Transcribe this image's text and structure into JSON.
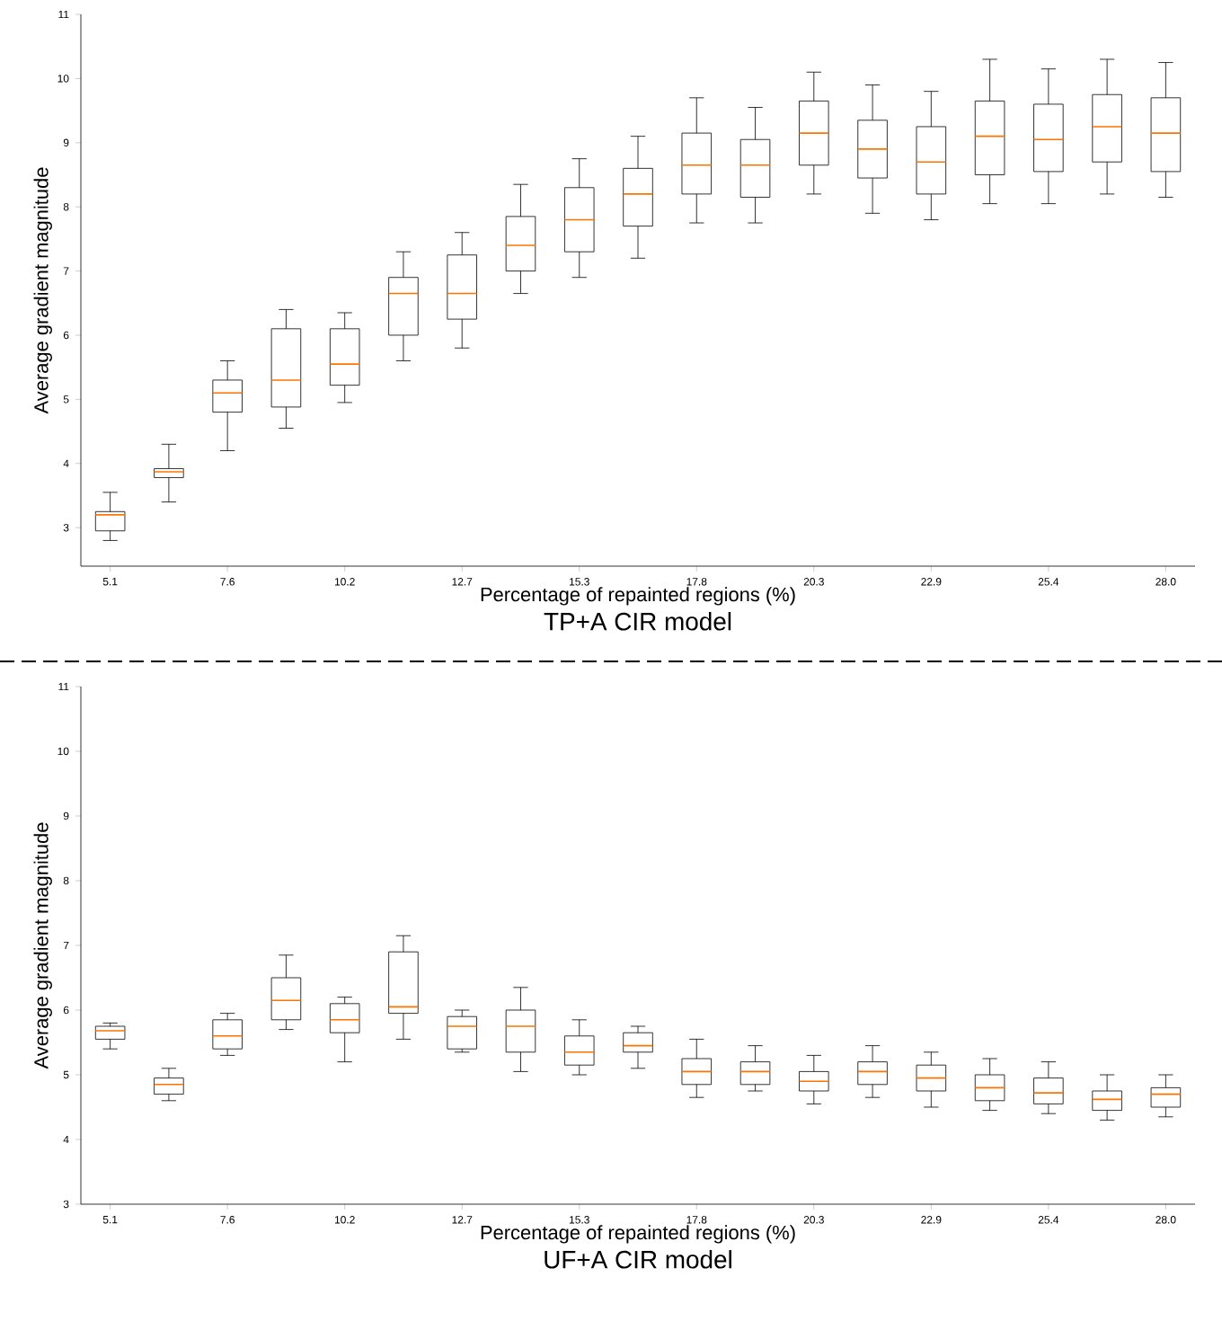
{
  "chart_data": [
    {
      "type": "box",
      "title": "TP+A CIR model",
      "xlabel": "Percentage of repainted regions (%)",
      "ylabel": "Average gradient magnitude",
      "color": "#000000",
      "categories": [
        "5.1",
        null,
        "7.6",
        null,
        "10.2",
        null,
        "12.7",
        null,
        "15.3",
        null,
        "17.8",
        null,
        "20.3",
        null,
        "22.9",
        null,
        "25.4",
        null,
        "28.0"
      ],
      "ylim": [
        2.4,
        11
      ],
      "yticks": [
        3,
        4,
        5,
        6,
        7,
        8,
        9,
        10,
        11
      ],
      "boxes": [
        {
          "low": 2.8,
          "q1": 2.95,
          "median": 3.2,
          "q3": 3.25,
          "high": 3.55
        },
        {
          "low": 3.4,
          "q1": 3.78,
          "median": 3.87,
          "q3": 3.92,
          "high": 4.3
        },
        {
          "low": 4.2,
          "q1": 4.8,
          "median": 5.1,
          "q3": 5.3,
          "high": 5.6
        },
        {
          "low": 4.55,
          "q1": 4.88,
          "median": 5.3,
          "q3": 6.1,
          "high": 6.4
        },
        {
          "low": 4.95,
          "q1": 5.22,
          "median": 5.55,
          "q3": 6.1,
          "high": 6.35
        },
        {
          "low": 5.6,
          "q1": 6.0,
          "median": 6.65,
          "q3": 6.9,
          "high": 7.3
        },
        {
          "low": 5.8,
          "q1": 6.25,
          "median": 6.65,
          "q3": 7.25,
          "high": 7.6
        },
        {
          "low": 6.65,
          "q1": 7.0,
          "median": 7.4,
          "q3": 7.85,
          "high": 8.35
        },
        {
          "low": 6.9,
          "q1": 7.3,
          "median": 7.8,
          "q3": 8.3,
          "high": 8.75
        },
        {
          "low": 7.2,
          "q1": 7.7,
          "median": 8.2,
          "q3": 8.6,
          "high": 9.1
        },
        {
          "low": 7.75,
          "q1": 8.2,
          "median": 8.65,
          "q3": 9.15,
          "high": 9.7
        },
        {
          "low": 7.75,
          "q1": 8.15,
          "median": 8.65,
          "q3": 9.05,
          "high": 9.55
        },
        {
          "low": 8.2,
          "q1": 8.65,
          "median": 9.15,
          "q3": 9.65,
          "high": 10.1
        },
        {
          "low": 7.9,
          "q1": 8.45,
          "median": 8.9,
          "q3": 9.35,
          "high": 9.9
        },
        {
          "low": 7.8,
          "q1": 8.2,
          "median": 8.7,
          "q3": 9.25,
          "high": 9.8
        },
        {
          "low": 8.05,
          "q1": 8.5,
          "median": 9.1,
          "q3": 9.65,
          "high": 10.3
        },
        {
          "low": 8.05,
          "q1": 8.55,
          "median": 9.05,
          "q3": 9.6,
          "high": 10.15
        },
        {
          "low": 8.2,
          "q1": 8.7,
          "median": 9.25,
          "q3": 9.75,
          "high": 10.3
        },
        {
          "low": 8.15,
          "q1": 8.55,
          "median": 9.15,
          "q3": 9.7,
          "high": 10.25
        }
      ]
    },
    {
      "type": "box",
      "title": "UF+A CIR model",
      "xlabel": "Percentage of repainted regions (%)",
      "ylabel": "Average gradient magnitude",
      "color": "#000000",
      "categories": [
        "5.1",
        null,
        "7.6",
        null,
        "10.2",
        null,
        "12.7",
        null,
        "15.3",
        null,
        "17.8",
        null,
        "20.3",
        null,
        "22.9",
        null,
        "25.4",
        null,
        "28.0"
      ],
      "ylim": [
        3,
        11
      ],
      "yticks": [
        3,
        4,
        5,
        6,
        7,
        8,
        9,
        10,
        11
      ],
      "boxes": [
        {
          "low": 5.4,
          "q1": 5.55,
          "median": 5.68,
          "q3": 5.75,
          "high": 5.8
        },
        {
          "low": 4.6,
          "q1": 4.7,
          "median": 4.85,
          "q3": 4.95,
          "high": 5.1
        },
        {
          "low": 5.3,
          "q1": 5.4,
          "median": 5.6,
          "q3": 5.85,
          "high": 5.95
        },
        {
          "low": 5.7,
          "q1": 5.85,
          "median": 6.15,
          "q3": 6.5,
          "high": 6.85
        },
        {
          "low": 5.2,
          "q1": 5.65,
          "median": 5.85,
          "q3": 6.1,
          "high": 6.2
        },
        {
          "low": 5.55,
          "q1": 5.95,
          "median": 6.05,
          "q3": 6.9,
          "high": 7.15
        },
        {
          "low": 5.35,
          "q1": 5.4,
          "median": 5.75,
          "q3": 5.9,
          "high": 6.0
        },
        {
          "low": 5.05,
          "q1": 5.35,
          "median": 5.75,
          "q3": 6.0,
          "high": 6.35
        },
        {
          "low": 5.0,
          "q1": 5.15,
          "median": 5.35,
          "q3": 5.6,
          "high": 5.85
        },
        {
          "low": 5.1,
          "q1": 5.35,
          "median": 5.45,
          "q3": 5.65,
          "high": 5.75
        },
        {
          "low": 4.65,
          "q1": 4.85,
          "median": 5.05,
          "q3": 5.25,
          "high": 5.55
        },
        {
          "low": 4.75,
          "q1": 4.85,
          "median": 5.05,
          "q3": 5.2,
          "high": 5.45
        },
        {
          "low": 4.55,
          "q1": 4.75,
          "median": 4.9,
          "q3": 5.05,
          "high": 5.3
        },
        {
          "low": 4.65,
          "q1": 4.85,
          "median": 5.05,
          "q3": 5.2,
          "high": 5.45
        },
        {
          "low": 4.5,
          "q1": 4.75,
          "median": 4.95,
          "q3": 5.15,
          "high": 5.35
        },
        {
          "low": 4.45,
          "q1": 4.6,
          "median": 4.8,
          "q3": 5.0,
          "high": 5.25
        },
        {
          "low": 4.4,
          "q1": 4.55,
          "median": 4.72,
          "q3": 4.95,
          "high": 5.2
        },
        {
          "low": 4.3,
          "q1": 4.45,
          "median": 4.62,
          "q3": 4.75,
          "high": 5.0
        },
        {
          "low": 4.35,
          "q1": 4.5,
          "median": 4.7,
          "q3": 4.8,
          "high": 5.0
        }
      ]
    }
  ]
}
